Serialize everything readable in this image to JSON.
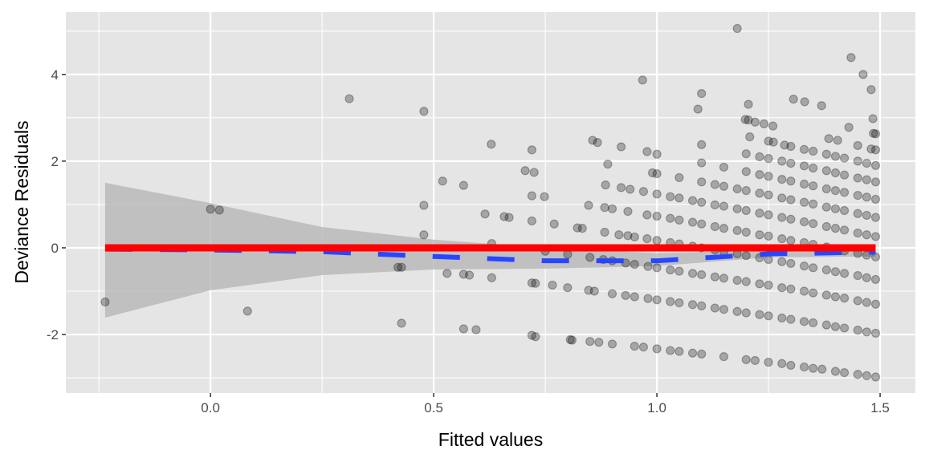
{
  "chart_data": {
    "type": "scatter",
    "title": "",
    "xlabel": "Fitted values",
    "ylabel": "Deviance Residuals",
    "xlim": [
      -0.324,
      1.579
    ],
    "ylim": [
      -3.35,
      5.44
    ],
    "x_ticks": [
      0.0,
      0.5,
      1.0,
      1.5
    ],
    "x_tick_labels": [
      "0.0",
      "0.5",
      "1.0",
      "1.5"
    ],
    "y_ticks": [
      -2,
      0,
      2,
      4
    ],
    "y_tick_labels": [
      "-2",
      "0",
      "2",
      "4"
    ],
    "grid": true,
    "colors": {
      "panel": "#e5e5e5",
      "grid": "#ffffff",
      "points": "#000000",
      "smooth": "#2946ff",
      "ribbon": "#b3b3b3",
      "reference": "#ff0000"
    },
    "points": [
      [
        -0.236,
        -1.25
      ],
      [
        0.0,
        0.89
      ],
      [
        0.02,
        0.87
      ],
      [
        0.083,
        -1.46
      ],
      [
        0.311,
        3.44
      ],
      [
        0.428,
        -1.74
      ],
      [
        0.478,
        3.15
      ],
      [
        0.478,
        0.98
      ],
      [
        0.478,
        0.3
      ],
      [
        0.52,
        1.54
      ],
      [
        0.53,
        -0.59
      ],
      [
        0.567,
        1.44
      ],
      [
        0.567,
        -1.87
      ],
      [
        0.595,
        -1.89
      ],
      [
        0.615,
        0.78
      ],
      [
        0.629,
        2.39
      ],
      [
        0.705,
        1.78
      ],
      [
        0.72,
        2.26
      ],
      [
        0.725,
        1.74
      ],
      [
        0.72,
        -2.02
      ],
      [
        0.728,
        -2.05
      ],
      [
        0.968,
        3.87
      ],
      [
        1.092,
        3.2
      ],
      [
        1.1,
        3.56
      ],
      [
        1.18,
        5.06
      ],
      [
        1.205,
        3.31
      ],
      [
        1.306,
        3.43
      ],
      [
        1.331,
        3.37
      ],
      [
        1.369,
        3.28
      ],
      [
        1.435,
        4.39
      ],
      [
        1.462,
        4.0
      ],
      [
        1.48,
        3.65
      ],
      [
        1.484,
        2.98
      ],
      [
        0.806,
        -2.12
      ],
      [
        0.81,
        -2.13
      ],
      [
        0.85,
        -2.16
      ],
      [
        0.87,
        -2.18
      ],
      [
        0.9,
        -2.22
      ],
      [
        0.95,
        -2.27
      ],
      [
        0.97,
        -2.29
      ],
      [
        1.0,
        -2.33
      ],
      [
        1.03,
        -2.37
      ],
      [
        1.05,
        -2.39
      ],
      [
        1.08,
        -2.43
      ],
      [
        1.1,
        -2.45
      ],
      [
        1.15,
        -2.51
      ],
      [
        1.2,
        -2.58
      ],
      [
        1.22,
        -2.6
      ],
      [
        1.25,
        -2.64
      ],
      [
        1.28,
        -2.67
      ],
      [
        1.3,
        -2.71
      ],
      [
        1.33,
        -2.75
      ],
      [
        1.35,
        -2.78
      ],
      [
        1.37,
        -2.8
      ],
      [
        1.4,
        -2.85
      ],
      [
        1.42,
        -2.88
      ],
      [
        1.45,
        -2.92
      ],
      [
        1.47,
        -2.95
      ],
      [
        1.49,
        -2.98
      ],
      [
        0.42,
        -0.45
      ],
      [
        0.428,
        -0.45
      ],
      [
        0.567,
        -0.61
      ],
      [
        0.58,
        -0.63
      ],
      [
        0.63,
        -0.69
      ],
      [
        0.72,
        -0.81
      ],
      [
        0.728,
        -0.82
      ],
      [
        0.766,
        -0.86
      ],
      [
        0.8,
        -0.92
      ],
      [
        0.847,
        -0.98
      ],
      [
        0.86,
        -1.0
      ],
      [
        0.9,
        -1.06
      ],
      [
        0.93,
        -1.1
      ],
      [
        0.95,
        -1.13
      ],
      [
        0.98,
        -1.17
      ],
      [
        1.0,
        -1.2
      ],
      [
        1.03,
        -1.24
      ],
      [
        1.05,
        -1.27
      ],
      [
        1.08,
        -1.31
      ],
      [
        1.1,
        -1.34
      ],
      [
        1.13,
        -1.39
      ],
      [
        1.15,
        -1.42
      ],
      [
        1.18,
        -1.47
      ],
      [
        1.2,
        -1.5
      ],
      [
        1.23,
        -1.54
      ],
      [
        1.25,
        -1.57
      ],
      [
        1.28,
        -1.62
      ],
      [
        1.3,
        -1.65
      ],
      [
        1.33,
        -1.7
      ],
      [
        1.35,
        -1.73
      ],
      [
        1.38,
        -1.78
      ],
      [
        1.4,
        -1.82
      ],
      [
        1.42,
        -1.85
      ],
      [
        1.45,
        -1.9
      ],
      [
        1.47,
        -1.94
      ],
      [
        1.49,
        -1.97
      ],
      [
        0.63,
        0.1
      ],
      [
        0.75,
        -0.08
      ],
      [
        0.8,
        -0.15
      ],
      [
        0.85,
        -0.22
      ],
      [
        0.88,
        -0.27
      ],
      [
        0.9,
        -0.3
      ],
      [
        0.93,
        -0.35
      ],
      [
        0.95,
        -0.38
      ],
      [
        0.98,
        -0.43
      ],
      [
        1.0,
        -0.46
      ],
      [
        1.03,
        -0.51
      ],
      [
        1.05,
        -0.54
      ],
      [
        1.08,
        -0.59
      ],
      [
        1.1,
        -0.62
      ],
      [
        1.13,
        -0.67
      ],
      [
        1.15,
        -0.7
      ],
      [
        1.18,
        -0.75
      ],
      [
        1.2,
        -0.78
      ],
      [
        1.23,
        -0.83
      ],
      [
        1.25,
        -0.86
      ],
      [
        1.28,
        -0.92
      ],
      [
        1.3,
        -0.95
      ],
      [
        1.33,
        -1.0
      ],
      [
        1.35,
        -1.04
      ],
      [
        1.38,
        -1.09
      ],
      [
        1.4,
        -1.13
      ],
      [
        1.42,
        -1.16
      ],
      [
        1.45,
        -1.22
      ],
      [
        1.47,
        -1.26
      ],
      [
        1.49,
        -1.3
      ],
      [
        0.658,
        0.72
      ],
      [
        0.669,
        0.7
      ],
      [
        0.72,
        0.62
      ],
      [
        0.77,
        0.55
      ],
      [
        0.822,
        0.46
      ],
      [
        0.833,
        0.45
      ],
      [
        0.883,
        0.36
      ],
      [
        0.915,
        0.3
      ],
      [
        0.935,
        0.28
      ],
      [
        0.95,
        0.25
      ],
      [
        0.978,
        0.21
      ],
      [
        1.0,
        0.17
      ],
      [
        1.03,
        0.12
      ],
      [
        1.05,
        0.09
      ],
      [
        1.08,
        0.04
      ],
      [
        1.1,
        0.0
      ],
      [
        1.13,
        -0.05
      ],
      [
        1.15,
        -0.09
      ],
      [
        1.18,
        -0.14
      ],
      [
        1.2,
        -0.18
      ],
      [
        1.23,
        -0.23
      ],
      [
        1.25,
        -0.27
      ],
      [
        1.28,
        -0.32
      ],
      [
        1.3,
        -0.36
      ],
      [
        1.33,
        -0.42
      ],
      [
        1.35,
        -0.46
      ],
      [
        1.38,
        -0.51
      ],
      [
        1.4,
        -0.55
      ],
      [
        1.42,
        -0.59
      ],
      [
        1.45,
        -0.64
      ],
      [
        1.47,
        -0.69
      ],
      [
        1.49,
        -0.73
      ],
      [
        0.72,
        1.2
      ],
      [
        0.748,
        1.18
      ],
      [
        0.847,
        0.98
      ],
      [
        0.883,
        0.93
      ],
      [
        0.9,
        0.9
      ],
      [
        0.935,
        0.84
      ],
      [
        0.978,
        0.76
      ],
      [
        1.0,
        0.73
      ],
      [
        1.03,
        0.68
      ],
      [
        1.05,
        0.64
      ],
      [
        1.08,
        0.59
      ],
      [
        1.1,
        0.55
      ],
      [
        1.13,
        0.49
      ],
      [
        1.15,
        0.45
      ],
      [
        1.18,
        0.4
      ],
      [
        1.2,
        0.36
      ],
      [
        1.23,
        0.3
      ],
      [
        1.25,
        0.27
      ],
      [
        1.28,
        0.21
      ],
      [
        1.3,
        0.17
      ],
      [
        1.33,
        0.12
      ],
      [
        1.35,
        0.08
      ],
      [
        1.38,
        0.02
      ],
      [
        1.4,
        -0.03
      ],
      [
        1.42,
        -0.07
      ],
      [
        1.45,
        -0.13
      ],
      [
        1.47,
        -0.17
      ],
      [
        1.49,
        -0.21
      ],
      [
        0.885,
        1.45
      ],
      [
        0.92,
        1.39
      ],
      [
        0.94,
        1.35
      ],
      [
        0.97,
        1.3
      ],
      [
        1.0,
        1.24
      ],
      [
        1.03,
        1.18
      ],
      [
        1.05,
        1.15
      ],
      [
        1.08,
        1.09
      ],
      [
        1.1,
        1.05
      ],
      [
        1.13,
        0.99
      ],
      [
        1.15,
        0.96
      ],
      [
        1.18,
        0.9
      ],
      [
        1.2,
        0.86
      ],
      [
        1.23,
        0.8
      ],
      [
        1.25,
        0.76
      ],
      [
        1.28,
        0.7
      ],
      [
        1.3,
        0.66
      ],
      [
        1.33,
        0.6
      ],
      [
        1.35,
        0.56
      ],
      [
        1.38,
        0.49
      ],
      [
        1.4,
        0.45
      ],
      [
        1.42,
        0.41
      ],
      [
        1.45,
        0.34
      ],
      [
        1.47,
        0.3
      ],
      [
        1.49,
        0.26
      ],
      [
        0.89,
        1.93
      ],
      [
        0.99,
        1.73
      ],
      [
        1.0,
        1.71
      ],
      [
        1.05,
        1.62
      ],
      [
        1.1,
        1.52
      ],
      [
        1.13,
        1.46
      ],
      [
        1.15,
        1.42
      ],
      [
        1.18,
        1.36
      ],
      [
        1.2,
        1.32
      ],
      [
        1.23,
        1.26
      ],
      [
        1.25,
        1.22
      ],
      [
        1.28,
        1.15
      ],
      [
        1.3,
        1.11
      ],
      [
        1.33,
        1.05
      ],
      [
        1.35,
        1.01
      ],
      [
        1.38,
        0.94
      ],
      [
        1.4,
        0.9
      ],
      [
        1.42,
        0.86
      ],
      [
        1.45,
        0.79
      ],
      [
        1.47,
        0.75
      ],
      [
        1.49,
        0.7
      ],
      [
        0.856,
        2.48
      ],
      [
        0.867,
        2.43
      ],
      [
        0.92,
        2.33
      ],
      [
        0.978,
        2.22
      ],
      [
        1.0,
        2.16
      ],
      [
        1.1,
        1.96
      ],
      [
        1.15,
        1.86
      ],
      [
        1.2,
        1.76
      ],
      [
        1.23,
        1.69
      ],
      [
        1.25,
        1.65
      ],
      [
        1.28,
        1.58
      ],
      [
        1.3,
        1.54
      ],
      [
        1.33,
        1.47
      ],
      [
        1.35,
        1.43
      ],
      [
        1.38,
        1.36
      ],
      [
        1.4,
        1.32
      ],
      [
        1.42,
        1.28
      ],
      [
        1.45,
        1.21
      ],
      [
        1.47,
        1.17
      ],
      [
        1.49,
        1.12
      ],
      [
        1.1,
        2.38
      ],
      [
        1.2,
        2.17
      ],
      [
        1.23,
        2.1
      ],
      [
        1.25,
        2.06
      ],
      [
        1.28,
        2.0
      ],
      [
        1.3,
        1.95
      ],
      [
        1.33,
        1.89
      ],
      [
        1.35,
        1.84
      ],
      [
        1.38,
        1.78
      ],
      [
        1.4,
        1.73
      ],
      [
        1.42,
        1.68
      ],
      [
        1.45,
        1.61
      ],
      [
        1.47,
        1.57
      ],
      [
        1.49,
        1.52
      ],
      [
        1.208,
        2.56
      ],
      [
        1.25,
        2.46
      ],
      [
        1.261,
        2.44
      ],
      [
        1.286,
        2.37
      ],
      [
        1.3,
        2.34
      ],
      [
        1.33,
        2.27
      ],
      [
        1.35,
        2.23
      ],
      [
        1.38,
        2.16
      ],
      [
        1.4,
        2.11
      ],
      [
        1.42,
        2.07
      ],
      [
        1.45,
        2.0
      ],
      [
        1.47,
        1.95
      ],
      [
        1.49,
        1.9
      ],
      [
        1.198,
        2.96
      ],
      [
        1.205,
        2.95
      ],
      [
        1.22,
        2.9
      ],
      [
        1.24,
        2.86
      ],
      [
        1.26,
        2.81
      ],
      [
        1.385,
        2.52
      ],
      [
        1.405,
        2.48
      ],
      [
        1.45,
        2.36
      ],
      [
        1.48,
        2.28
      ],
      [
        1.49,
        2.26
      ],
      [
        1.43,
        2.78
      ],
      [
        1.485,
        2.64
      ],
      [
        1.49,
        2.63
      ]
    ],
    "smooth": {
      "x": [
        -0.236,
        0.0,
        0.25,
        0.5,
        0.75,
        1.0,
        1.25,
        1.49
      ],
      "fit": [
        -0.03,
        -0.05,
        -0.09,
        -0.2,
        -0.3,
        -0.3,
        -0.14,
        -0.1
      ],
      "lower": [
        -1.61,
        -0.98,
        -0.63,
        -0.5,
        -0.48,
        -0.42,
        -0.22,
        -0.2
      ],
      "upper": [
        1.5,
        1.03,
        0.48,
        0.19,
        0.0,
        -0.12,
        -0.06,
        0.0
      ]
    },
    "reference_line": {
      "y": 0,
      "x": [
        -0.236,
        1.49
      ]
    }
  }
}
